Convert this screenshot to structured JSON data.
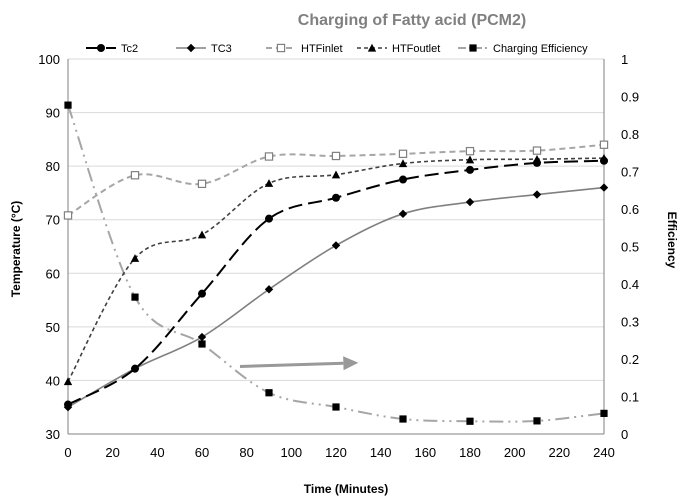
{
  "chart_data": {
    "type": "line",
    "title": "Charging of Fatty acid  (PCM2)",
    "xlabel": "Time (Minutes)",
    "ylabel": "Temperature (°C)",
    "y2label": "Efficiency",
    "xlim": [
      0,
      240
    ],
    "ylim": [
      30,
      100
    ],
    "y2lim": [
      0,
      1
    ],
    "x_ticks": [
      "0",
      "20",
      "40",
      "60",
      "80",
      "100",
      "120",
      "140",
      "160",
      "180",
      "200",
      "220",
      "240"
    ],
    "y_ticks": [
      "30",
      "40",
      "50",
      "60",
      "70",
      "80",
      "90",
      "100"
    ],
    "y2_ticks": [
      "0",
      "0.1",
      "0.2",
      "0.3",
      "0.4",
      "0.5",
      "0.6",
      "0.7",
      "0.8",
      "0.9",
      "1"
    ],
    "grid": "horizontal",
    "legend_position": "top",
    "series": [
      {
        "name": "Tc2",
        "axis": "left",
        "color": "#000000",
        "marker": "circle",
        "dash": "long-dash",
        "x": [
          0,
          30,
          60,
          90,
          120,
          150,
          180,
          210,
          240
        ],
        "values": [
          35.5,
          42.2,
          56.2,
          70.2,
          74.1,
          77.5,
          79.3,
          80.6,
          81.0
        ]
      },
      {
        "name": "TC3",
        "axis": "left",
        "color": "#808080",
        "marker": "diamond",
        "dash": "solid",
        "x": [
          0,
          30,
          60,
          90,
          120,
          150,
          180,
          210,
          240
        ],
        "values": [
          35.0,
          42.2,
          48.1,
          57.0,
          65.2,
          71.1,
          73.3,
          74.7,
          76.0
        ]
      },
      {
        "name": "HTFinlet",
        "axis": "left",
        "color": "#a6a6a6",
        "marker": "open-square",
        "dash": "dashed",
        "x": [
          0,
          30,
          60,
          90,
          120,
          150,
          180,
          210,
          240
        ],
        "values": [
          70.8,
          78.3,
          76.7,
          81.8,
          81.9,
          82.3,
          82.8,
          82.9,
          84.0
        ]
      },
      {
        "name": "HTFoutlet",
        "axis": "left",
        "color": "#404040",
        "marker": "triangle",
        "dash": "short-dash",
        "x": [
          0,
          30,
          60,
          90,
          120,
          150,
          180,
          210,
          240
        ],
        "values": [
          39.8,
          62.8,
          67.2,
          76.8,
          78.4,
          80.5,
          81.2,
          81.3,
          81.5
        ]
      },
      {
        "name": "Charging Efficiency",
        "axis": "right",
        "color": "#a6a6a6",
        "marker": "square",
        "dash": "dash-dot-dot",
        "x": [
          0,
          30,
          60,
          90,
          120,
          150,
          180,
          210,
          240
        ],
        "values": [
          0.877,
          0.365,
          0.24,
          0.11,
          0.072,
          0.04,
          0.034,
          0.035,
          0.055
        ]
      }
    ],
    "annotation": {
      "type": "arrow",
      "color": "#999999",
      "from": [
        77,
        0.18
      ],
      "to": [
        130,
        0.19
      ]
    }
  }
}
